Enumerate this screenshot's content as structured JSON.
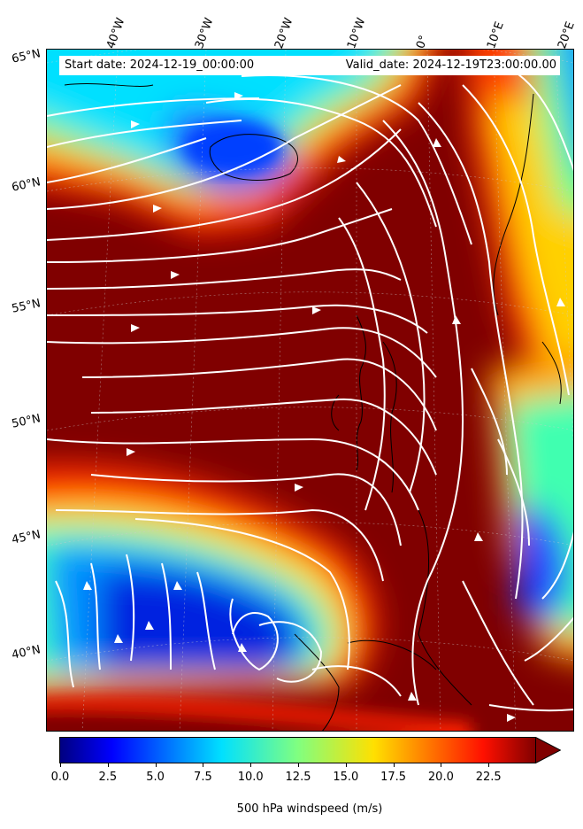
{
  "header": {
    "start_date": "Start date: 2024-12-19_00:00:00",
    "valid_date": "Valid_date: 2024-12-19T23:00:00.00"
  },
  "axes": {
    "longitude_labels": [
      "40°W",
      "30°W",
      "20°W",
      "10°W",
      "0°",
      "10°E",
      "20°E"
    ],
    "latitude_labels": [
      "65°N",
      "60°N",
      "55°N",
      "50°N",
      "45°N",
      "40°N"
    ]
  },
  "colorbar": {
    "label": "500 hPa windspeed (m/s)",
    "ticks": [
      "0.0",
      "2.5",
      "5.0",
      "7.5",
      "10.0",
      "12.5",
      "15.0",
      "17.5",
      "20.0",
      "22.5"
    ],
    "min": 0,
    "max": 25,
    "extend": "max"
  },
  "colors": {
    "jet_max": "#800000",
    "jet_low": "#00007f",
    "streamline": "#ffffff",
    "coastline": "#000000"
  },
  "map": {
    "projection": "Lambert conformal",
    "field": "500 hPa windspeed",
    "overlay": "streamlines",
    "coastlines": true
  }
}
